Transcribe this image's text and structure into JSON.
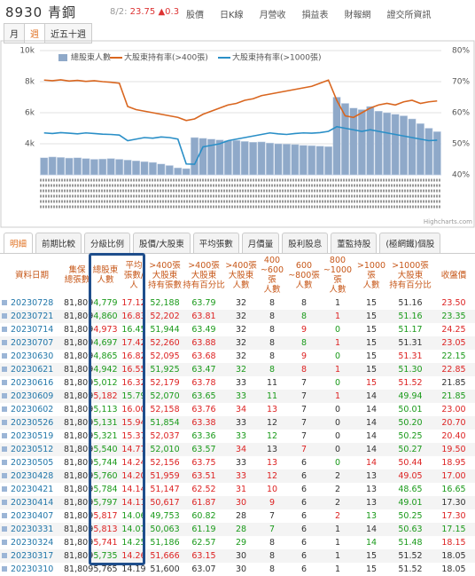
{
  "header": {
    "title": "8930 青鋼",
    "quote_date": "8/2:",
    "price": "23.75",
    "change": "▲0.3",
    "links": [
      "股價",
      "日K線",
      "月營收",
      "損益表",
      "財報網",
      "證交所資訊"
    ]
  },
  "period_tabs": {
    "items": [
      "月",
      "週",
      "近五十週"
    ],
    "active": 1
  },
  "chart": {
    "ylim": [
      2000,
      10000
    ],
    "yticks": [
      {
        "value": 4000,
        "label": "4k"
      },
      {
        "value": 6000,
        "label": "6k"
      },
      {
        "value": 8000,
        "label": "8k"
      },
      {
        "value": 10000,
        "label": "10k"
      }
    ],
    "y2lim": [
      40,
      80
    ],
    "y2ticks": [
      {
        "value": 40,
        "label": "40%"
      },
      {
        "value": 50,
        "label": "50%"
      },
      {
        "value": 60,
        "label": "60%"
      },
      {
        "value": 70,
        "label": "70%"
      },
      {
        "value": 80,
        "label": "80%"
      }
    ],
    "grid": true,
    "series": [
      {
        "name": "總股東人數",
        "type": "column",
        "color": "#8fa9c9",
        "values": [
          3100,
          3150,
          3120,
          3080,
          3100,
          3050,
          3000,
          3020,
          3050,
          3000,
          2950,
          2900,
          2850,
          2800,
          2700,
          2600,
          2450,
          2400,
          4400,
          4350,
          4300,
          4250,
          4200,
          4220,
          4150,
          4100,
          4120,
          4050,
          4000,
          3980,
          3950,
          3900,
          3880,
          3850,
          3820,
          7000,
          6600,
          6300,
          6200,
          6400,
          6100,
          6000,
          5900,
          5800,
          5600,
          5300,
          5000,
          4779
        ]
      },
      {
        "name": "大股東持有率(>400張)",
        "type": "line",
        "axis": "y2",
        "color": "#d9661f",
        "values": [
          70.5,
          70.3,
          70.6,
          70.2,
          70.4,
          70.1,
          70.3,
          70.0,
          69.8,
          69.5,
          62.0,
          61.0,
          60.5,
          60.0,
          59.5,
          59.0,
          58.5,
          57.5,
          58.0,
          59.5,
          60.5,
          61.5,
          62.5,
          63.0,
          64.0,
          64.5,
          65.5,
          66.0,
          66.5,
          67.0,
          67.5,
          68.0,
          68.5,
          69.5,
          70.5,
          64.0,
          59.0,
          58.5,
          60.0,
          61.5,
          62.5,
          63.0,
          62.5,
          63.5,
          64.0,
          63.0,
          63.5,
          63.79
        ]
      },
      {
        "name": "大股東持有率(>1000張)",
        "type": "line",
        "axis": "y2",
        "color": "#2a8fc7",
        "values": [
          53.5,
          53.3,
          53.6,
          53.4,
          53.2,
          53.5,
          53.3,
          53.1,
          53.0,
          52.8,
          51.0,
          51.5,
          52.0,
          51.8,
          52.2,
          52.0,
          51.5,
          43.5,
          43.4,
          49.0,
          49.5,
          50.0,
          51.0,
          51.5,
          52.0,
          52.5,
          53.0,
          53.5,
          53.2,
          53.0,
          53.3,
          53.5,
          53.4,
          53.6,
          54.0,
          55.5,
          55.0,
          54.5,
          54.0,
          54.5,
          54.0,
          53.5,
          53.0,
          52.5,
          52.0,
          51.5,
          51.0,
          51.16
        ]
      }
    ],
    "credits": "Highcharts.com"
  },
  "table_tabs": {
    "items": [
      "明細",
      "前期比較",
      "分級比例",
      "股價/大股東",
      "平均張數",
      "月價量",
      "股利股息",
      "董監持股",
      "(極網鐵)個股"
    ],
    "active": 0
  },
  "table": {
    "headers": [
      [
        "資料日期"
      ],
      [
        "集保",
        "總張數"
      ],
      [
        "總股東",
        "人數"
      ],
      [
        "平均",
        "張數/人"
      ],
      [
        ">400張",
        "大股東",
        "持有張數"
      ],
      [
        ">400張",
        "大股東",
        "持有百分比"
      ],
      [
        ">400張",
        "大股東",
        "人數"
      ],
      [
        "400",
        "~600張",
        "人數"
      ],
      [
        "600",
        "~800張",
        "人數"
      ],
      [
        "800",
        "~1000張",
        "人數"
      ],
      [
        ">1000張",
        "人數"
      ],
      [
        ">1000張",
        "大股東",
        "持有百分比"
      ],
      [
        "收盤價"
      ]
    ],
    "rows": [
      [
        "20230728",
        "81,809",
        "4,779",
        "17.12",
        "52,188",
        "63.79",
        "32",
        "8",
        "8",
        "1",
        "15",
        "51.16",
        "23.50"
      ],
      [
        "20230721",
        "81,809",
        "4,860",
        "16.83",
        "52,202",
        "63.81",
        "32",
        "8",
        "8",
        "1",
        "15",
        "51.16",
        "23.35"
      ],
      [
        "20230714",
        "81,809",
        "4,973",
        "16.45",
        "51,944",
        "63.49",
        "32",
        "8",
        "9",
        "0",
        "15",
        "51.17",
        "24.25"
      ],
      [
        "20230707",
        "81,809",
        "4,697",
        "17.42",
        "52,260",
        "63.88",
        "32",
        "8",
        "8",
        "1",
        "15",
        "51.31",
        "23.05"
      ],
      [
        "20230630",
        "81,809",
        "4,865",
        "16.82",
        "52,095",
        "63.68",
        "32",
        "8",
        "9",
        "0",
        "15",
        "51.31",
        "22.15"
      ],
      [
        "20230621",
        "81,809",
        "4,942",
        "16.55",
        "51,925",
        "63.47",
        "32",
        "8",
        "8",
        "1",
        "15",
        "51.30",
        "22.85"
      ],
      [
        "20230616",
        "81,809",
        "5,012",
        "16.32",
        "52,179",
        "63.78",
        "33",
        "11",
        "7",
        "0",
        "15",
        "51.52",
        "21.85"
      ],
      [
        "20230609",
        "81,809",
        "5,182",
        "15.79",
        "52,070",
        "63.65",
        "33",
        "11",
        "7",
        "1",
        "14",
        "49.94",
        "21.85"
      ],
      [
        "20230602",
        "81,809",
        "5,113",
        "16.00",
        "52,158",
        "63.76",
        "34",
        "13",
        "7",
        "0",
        "14",
        "50.01",
        "23.00"
      ],
      [
        "20230526",
        "81,809",
        "5,131",
        "15.94",
        "51,854",
        "63.38",
        "33",
        "12",
        "7",
        "0",
        "14",
        "50.20",
        "20.70"
      ],
      [
        "20230519",
        "81,809",
        "5,321",
        "15.37",
        "52,037",
        "63.36",
        "33",
        "12",
        "7",
        "0",
        "14",
        "50.25",
        "20.40"
      ],
      [
        "20230512",
        "81,809",
        "5,540",
        "14.77",
        "52,010",
        "63.57",
        "34",
        "13",
        "7",
        "0",
        "14",
        "50.27",
        "19.50"
      ],
      [
        "20230505",
        "81,809",
        "5,744",
        "14.24",
        "52,156",
        "63.75",
        "33",
        "13",
        "6",
        "0",
        "14",
        "50.44",
        "18.95"
      ],
      [
        "20230428",
        "81,809",
        "5,760",
        "14.20",
        "51,959",
        "63.51",
        "33",
        "12",
        "6",
        "2",
        "13",
        "49.05",
        "17.00"
      ],
      [
        "20230421",
        "81,809",
        "5,784",
        "14.14",
        "51,147",
        "62.52",
        "31",
        "10",
        "6",
        "2",
        "13",
        "48.65",
        "16.65"
      ],
      [
        "20230414",
        "81,809",
        "5,797",
        "14.11",
        "50,617",
        "61.87",
        "30",
        "9",
        "6",
        "2",
        "13",
        "49.01",
        "17.30"
      ],
      [
        "20230407",
        "81,809",
        "5,817",
        "14.06",
        "49,753",
        "60.82",
        "28",
        "7",
        "6",
        "2",
        "13",
        "50.25",
        "17.30"
      ],
      [
        "20230331",
        "81,809",
        "5,813",
        "14.07",
        "50,063",
        "61.19",
        "28",
        "7",
        "6",
        "1",
        "14",
        "50.63",
        "17.15"
      ],
      [
        "20230324",
        "81,809",
        "5,741",
        "14.25",
        "51,186",
        "62.57",
        "29",
        "8",
        "6",
        "1",
        "14",
        "51.48",
        "18.15"
      ],
      [
        "20230317",
        "81,809",
        "5,735",
        "14.26",
        "51,666",
        "63.15",
        "30",
        "8",
        "6",
        "1",
        "15",
        "51.52",
        "18.05"
      ],
      [
        "20230310",
        "81,809",
        "5,765",
        "14.19",
        "51,600",
        "63.07",
        "30",
        "8",
        "6",
        "1",
        "15",
        "51.52",
        "18.05"
      ]
    ]
  }
}
